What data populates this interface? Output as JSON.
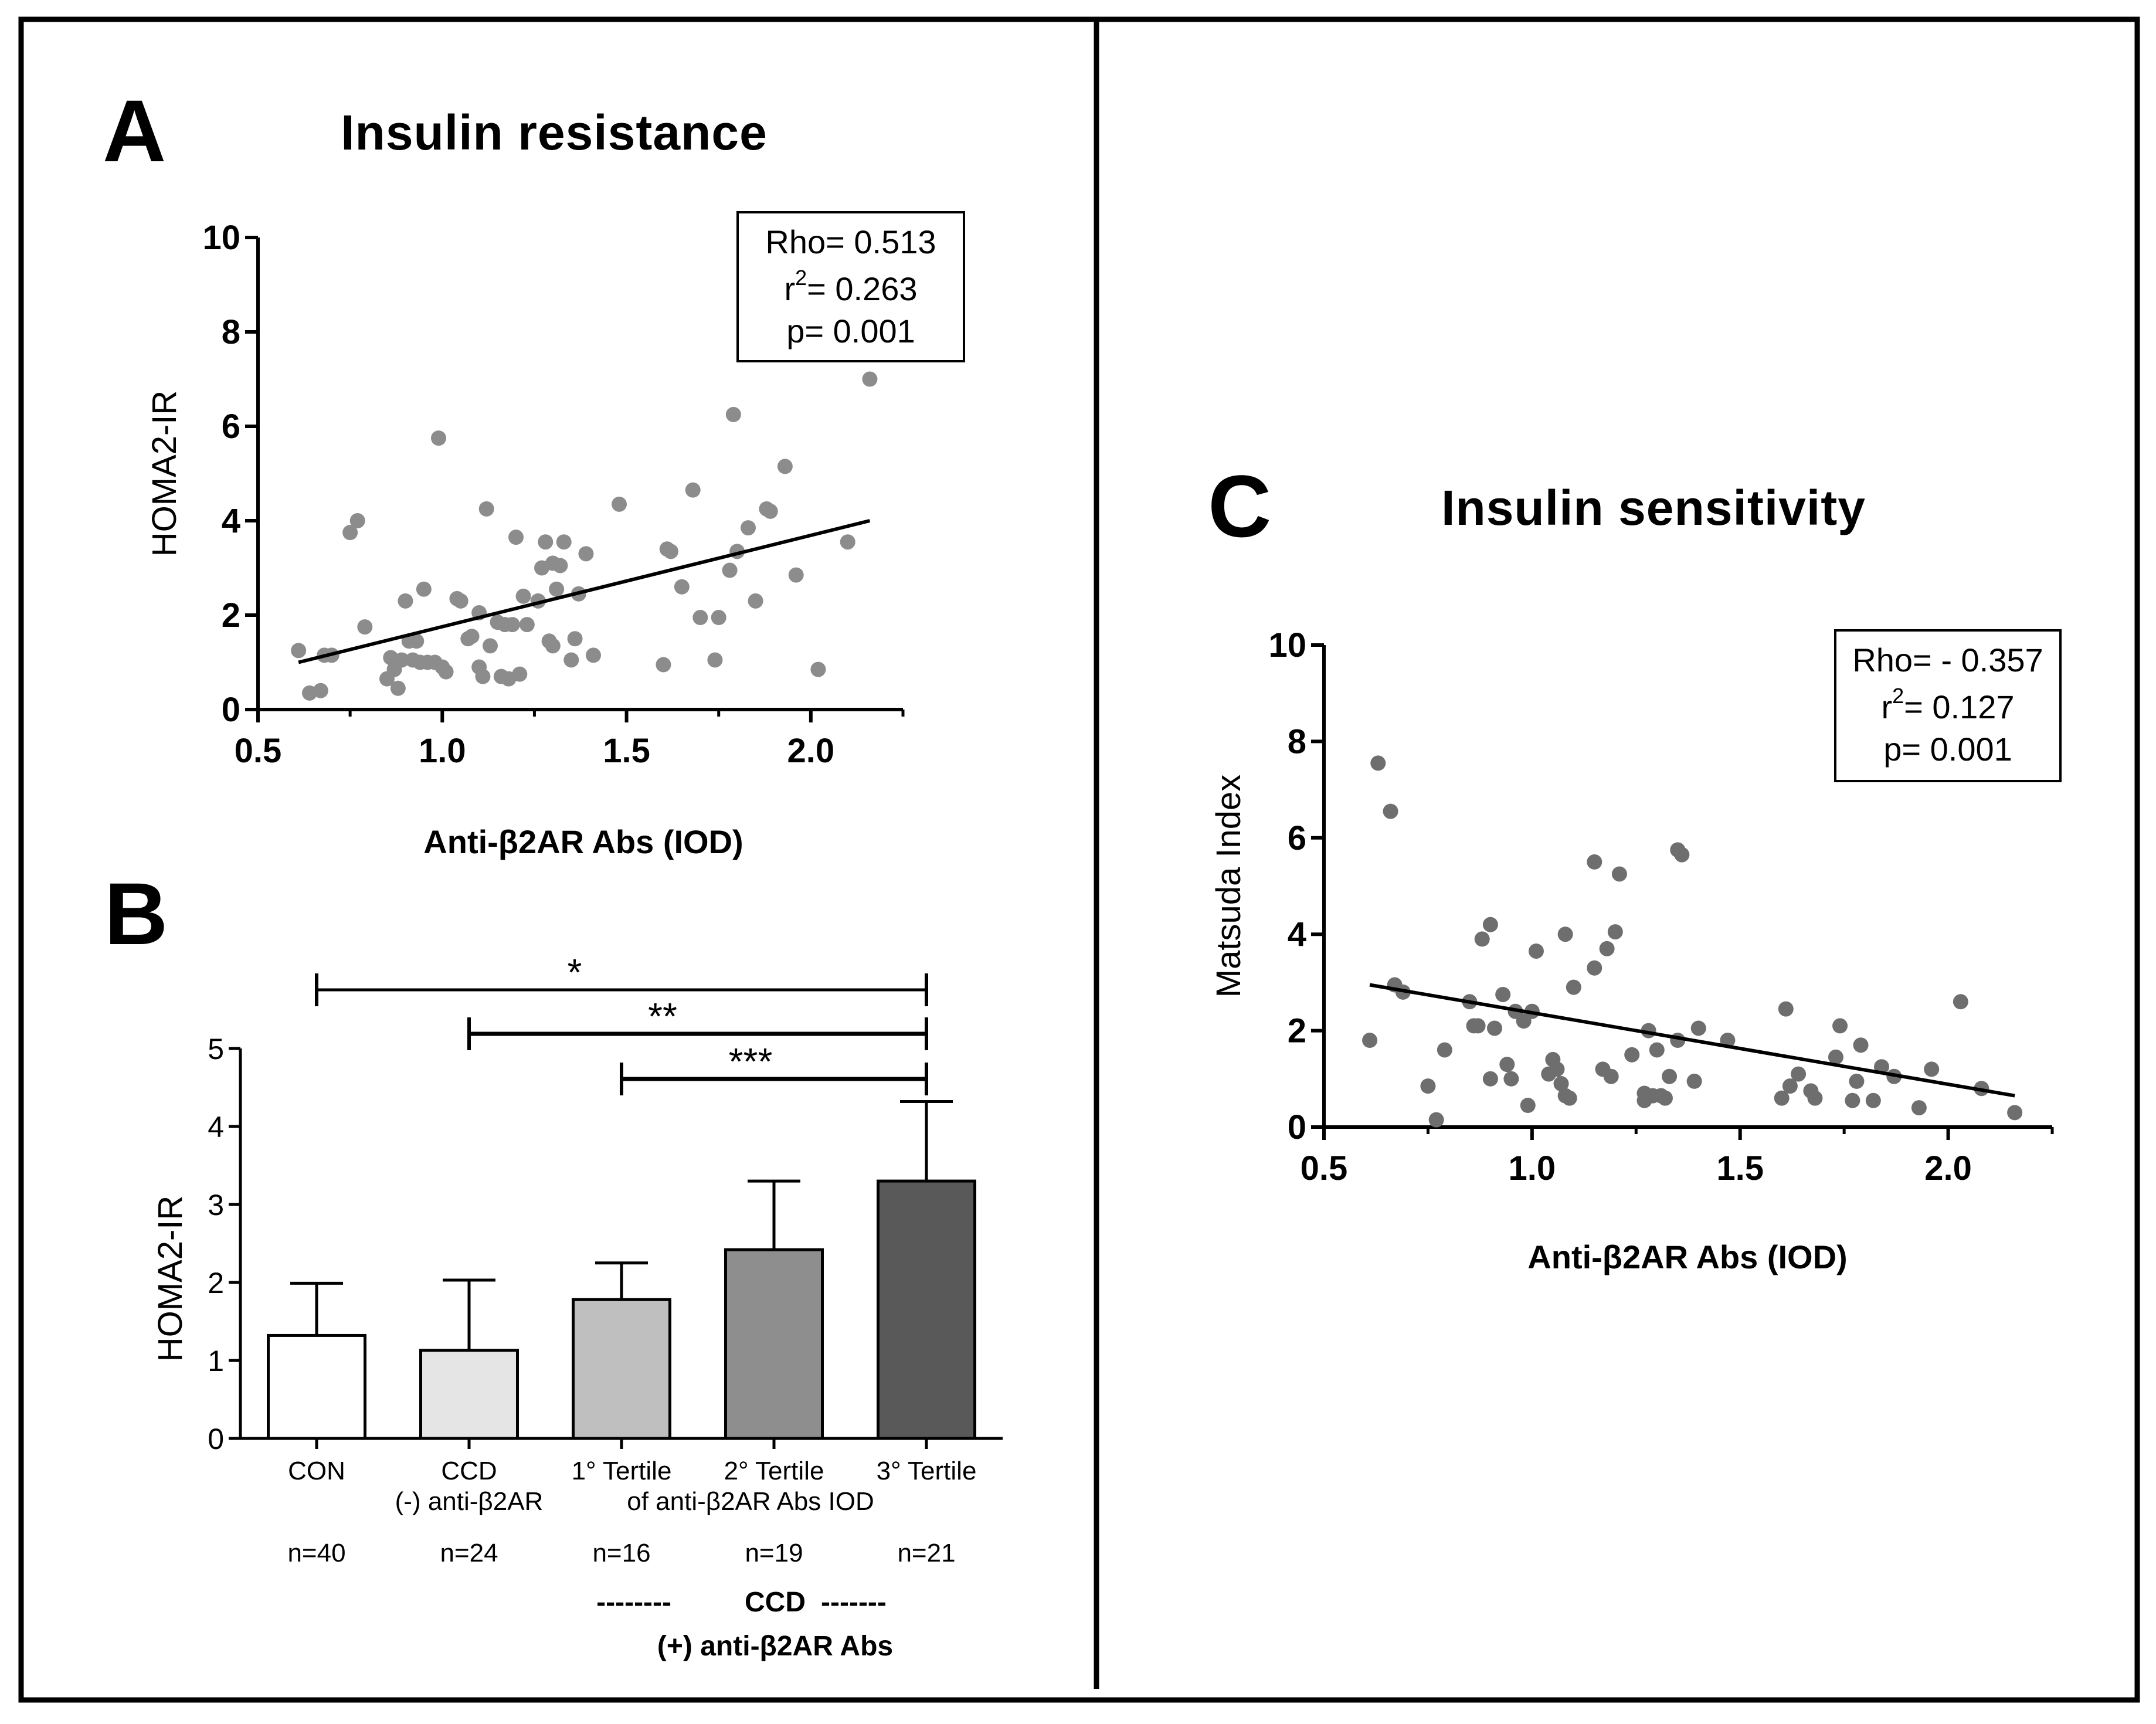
{
  "panels": {
    "A": {
      "letter": "A",
      "title": "Insulin resistance"
    },
    "B": {
      "letter": "B"
    },
    "C": {
      "letter": "C",
      "title": "Insulin sensitivity"
    }
  },
  "chart_data": [
    {
      "id": "A",
      "type": "scatter",
      "title": "Insulin resistance",
      "xlabel": "Anti-β2AR Abs (IOD)",
      "ylabel": "HOMA2-IR",
      "xlim": [
        0.5,
        2.25
      ],
      "ylim": [
        0,
        10
      ],
      "xticks": [
        "0.5",
        "1.0",
        "1.5",
        "2.0"
      ],
      "yticks": [
        "0",
        "2",
        "4",
        "6",
        "8",
        "10"
      ],
      "stats": {
        "rho": "Rho= 0.513",
        "r2_prefix": "r",
        "r2_sup": "2",
        "r2_value": "= 0.263",
        "p": "p= 0.001"
      },
      "regression": {
        "x0": 0.61,
        "y0": 1.0,
        "x1": 2.16,
        "y1": 4.0
      },
      "points": [
        [
          0.61,
          1.25
        ],
        [
          0.64,
          0.35
        ],
        [
          0.67,
          0.4
        ],
        [
          0.68,
          1.15
        ],
        [
          0.7,
          1.15
        ],
        [
          0.75,
          3.75
        ],
        [
          0.77,
          4.0
        ],
        [
          0.79,
          1.75
        ],
        [
          0.85,
          0.65
        ],
        [
          0.86,
          1.1
        ],
        [
          0.87,
          0.85
        ],
        [
          0.88,
          0.45
        ],
        [
          0.89,
          1.05
        ],
        [
          0.9,
          2.3
        ],
        [
          0.91,
          1.45
        ],
        [
          0.92,
          1.05
        ],
        [
          0.93,
          1.45
        ],
        [
          0.94,
          1.0
        ],
        [
          0.95,
          2.55
        ],
        [
          0.96,
          1.0
        ],
        [
          0.98,
          1.0
        ],
        [
          0.99,
          5.75
        ],
        [
          1.0,
          0.9
        ],
        [
          1.01,
          0.8
        ],
        [
          1.04,
          2.35
        ],
        [
          1.05,
          2.3
        ],
        [
          1.07,
          1.5
        ],
        [
          1.08,
          1.55
        ],
        [
          1.1,
          2.05
        ],
        [
          1.1,
          0.9
        ],
        [
          1.11,
          0.7
        ],
        [
          1.12,
          4.25
        ],
        [
          1.13,
          1.35
        ],
        [
          1.15,
          1.85
        ],
        [
          1.16,
          0.7
        ],
        [
          1.17,
          1.8
        ],
        [
          1.18,
          0.65
        ],
        [
          1.19,
          1.8
        ],
        [
          1.2,
          3.65
        ],
        [
          1.21,
          0.75
        ],
        [
          1.22,
          2.4
        ],
        [
          1.23,
          1.8
        ],
        [
          1.26,
          2.3
        ],
        [
          1.27,
          3.0
        ],
        [
          1.28,
          3.55
        ],
        [
          1.29,
          1.45
        ],
        [
          1.3,
          1.35
        ],
        [
          1.3,
          3.1
        ],
        [
          1.31,
          2.55
        ],
        [
          1.32,
          3.05
        ],
        [
          1.33,
          3.55
        ],
        [
          1.35,
          1.05
        ],
        [
          1.36,
          1.5
        ],
        [
          1.37,
          2.45
        ],
        [
          1.39,
          3.3
        ],
        [
          1.41,
          1.15
        ],
        [
          1.48,
          4.35
        ],
        [
          1.6,
          0.95
        ],
        [
          1.61,
          3.4
        ],
        [
          1.62,
          3.35
        ],
        [
          1.65,
          2.6
        ],
        [
          1.68,
          4.65
        ],
        [
          1.7,
          1.95
        ],
        [
          1.74,
          1.05
        ],
        [
          1.75,
          1.95
        ],
        [
          1.78,
          2.95
        ],
        [
          1.79,
          6.25
        ],
        [
          1.8,
          3.35
        ],
        [
          1.83,
          3.85
        ],
        [
          1.85,
          2.3
        ],
        [
          1.88,
          4.25
        ],
        [
          1.89,
          4.2
        ],
        [
          1.93,
          5.15
        ],
        [
          1.96,
          2.85
        ],
        [
          2.02,
          0.85
        ],
        [
          2.1,
          3.55
        ],
        [
          2.16,
          7.0
        ]
      ]
    },
    {
      "id": "B",
      "type": "bar",
      "ylabel": "HOMA2-IR",
      "ylim": [
        0,
        5
      ],
      "yticks": [
        "0",
        "1",
        "2",
        "3",
        "4",
        "5"
      ],
      "categories": [
        {
          "line1": "CON",
          "line2": "",
          "n": "n=40",
          "value": 1.32,
          "error": 0.67,
          "color": "#ffffff"
        },
        {
          "line1": "CCD",
          "line2": "(-) anti-β2AR",
          "n": "n=24",
          "value": 1.13,
          "error": 0.9,
          "color": "#e5e5e5"
        },
        {
          "line1": "1° Tertile",
          "line2": "",
          "n": "n=16",
          "value": 1.78,
          "error": 0.47,
          "color": "#bfbfbf"
        },
        {
          "line1": "2° Tertile",
          "line2": "",
          "n": "n=19",
          "value": 2.42,
          "error": 0.88,
          "color": "#8e8e8e"
        },
        {
          "line1": "3° Tertile",
          "line2": "",
          "n": "n=21",
          "value": 3.3,
          "error": 1.02,
          "color": "#595959"
        }
      ],
      "tertile_label": "of anti-β2AR Abs IOD",
      "significance": [
        {
          "from": 0,
          "to": 4,
          "label": "*"
        },
        {
          "from": 1,
          "to": 4,
          "label": "**"
        },
        {
          "from": 2,
          "to": 4,
          "label": "***"
        }
      ],
      "group_label": {
        "dashes_left": "--------",
        "center": "CCD",
        "dashes_right": "-------",
        "bottom": "(+) anti-β2AR Abs"
      }
    },
    {
      "id": "C",
      "type": "scatter",
      "title": "Insulin sensitivity",
      "xlabel": "Anti-β2AR Abs (IOD)",
      "ylabel": "Matsuda Index",
      "xlim": [
        0.5,
        2.25
      ],
      "ylim": [
        0,
        10
      ],
      "xticks": [
        "0.5",
        "1.0",
        "1.5",
        "2.0"
      ],
      "yticks": [
        "0",
        "2",
        "4",
        "6",
        "8",
        "10"
      ],
      "stats": {
        "rho": "Rho= - 0.357",
        "r2_prefix": "r",
        "r2_sup": "2",
        "r2_value": "= 0.127",
        "p": "p= 0.001"
      },
      "regression": {
        "x0": 0.61,
        "y0": 2.95,
        "x1": 2.16,
        "y1": 0.65
      },
      "points": [
        [
          0.61,
          1.8
        ],
        [
          0.63,
          7.55
        ],
        [
          0.66,
          6.55
        ],
        [
          0.67,
          2.95
        ],
        [
          0.69,
          2.8
        ],
        [
          0.75,
          0.85
        ],
        [
          0.77,
          0.15
        ],
        [
          0.79,
          1.6
        ],
        [
          0.85,
          2.6
        ],
        [
          0.86,
          2.1
        ],
        [
          0.87,
          2.1
        ],
        [
          0.88,
          3.9
        ],
        [
          0.9,
          4.2
        ],
        [
          0.9,
          1.0
        ],
        [
          0.91,
          2.05
        ],
        [
          0.93,
          2.75
        ],
        [
          0.94,
          1.3
        ],
        [
          0.95,
          1.0
        ],
        [
          0.96,
          2.4
        ],
        [
          0.98,
          2.2
        ],
        [
          0.99,
          0.45
        ],
        [
          1.0,
          2.4
        ],
        [
          1.01,
          3.65
        ],
        [
          1.04,
          1.1
        ],
        [
          1.05,
          1.4
        ],
        [
          1.06,
          1.2
        ],
        [
          1.07,
          0.9
        ],
        [
          1.08,
          0.65
        ],
        [
          1.08,
          4.0
        ],
        [
          1.09,
          0.6
        ],
        [
          1.1,
          2.9
        ],
        [
          1.15,
          5.5
        ],
        [
          1.15,
          3.3
        ],
        [
          1.17,
          1.2
        ],
        [
          1.18,
          3.7
        ],
        [
          1.19,
          1.05
        ],
        [
          1.2,
          4.05
        ],
        [
          1.21,
          5.25
        ],
        [
          1.24,
          1.5
        ],
        [
          1.27,
          0.7
        ],
        [
          1.27,
          0.55
        ],
        [
          1.28,
          2.0
        ],
        [
          1.29,
          0.65
        ],
        [
          1.3,
          1.6
        ],
        [
          1.31,
          0.65
        ],
        [
          1.32,
          0.6
        ],
        [
          1.33,
          1.05
        ],
        [
          1.35,
          5.75
        ],
        [
          1.35,
          1.8
        ],
        [
          1.36,
          5.65
        ],
        [
          1.39,
          0.95
        ],
        [
          1.4,
          2.05
        ],
        [
          1.47,
          1.8
        ],
        [
          1.6,
          0.6
        ],
        [
          1.61,
          2.45
        ],
        [
          1.62,
          0.85
        ],
        [
          1.64,
          1.1
        ],
        [
          1.67,
          0.75
        ],
        [
          1.68,
          0.6
        ],
        [
          1.73,
          1.45
        ],
        [
          1.74,
          2.1
        ],
        [
          1.77,
          0.55
        ],
        [
          1.78,
          0.95
        ],
        [
          1.79,
          1.7
        ],
        [
          1.82,
          0.55
        ],
        [
          1.84,
          1.25
        ],
        [
          1.87,
          1.05
        ],
        [
          1.93,
          0.4
        ],
        [
          1.96,
          1.2
        ],
        [
          2.03,
          2.6
        ],
        [
          2.08,
          0.8
        ],
        [
          2.16,
          0.3
        ]
      ]
    }
  ]
}
